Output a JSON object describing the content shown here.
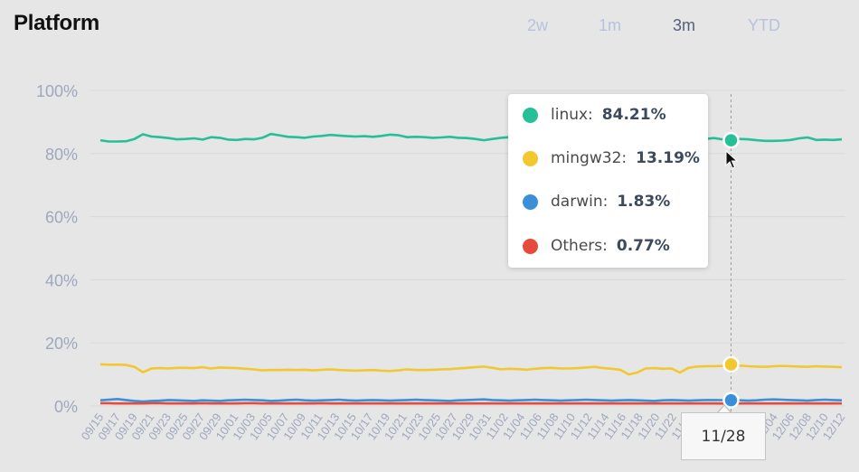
{
  "title": "Platform",
  "range_tabs": [
    {
      "label": "2w",
      "active": false
    },
    {
      "label": "1m",
      "active": false
    },
    {
      "label": "3m",
      "active": true
    },
    {
      "label": "YTD",
      "active": false
    }
  ],
  "tooltip": {
    "rows": [
      {
        "name": "linux",
        "value": "84.21%",
        "color": "#26bf97"
      },
      {
        "name": "mingw32",
        "value": "13.19%",
        "color": "#f2c72f"
      },
      {
        "name": "darwin",
        "value": "1.83%",
        "color": "#3a8fd9"
      },
      {
        "name": "Others",
        "value": "0.77%",
        "color": "#e54a3c"
      }
    ]
  },
  "hover_label": "11/28",
  "colors": {
    "linux": "#26bf97",
    "mingw32": "#f2c72f",
    "darwin": "#3a8fd9",
    "others": "#e54a3c",
    "axis_text": "#9ea8bd",
    "grid": "#d9d9d9"
  },
  "chart_data": {
    "type": "line",
    "title": "Platform",
    "xlabel": "",
    "ylabel": "",
    "ylim": [
      0,
      100
    ],
    "yticks": [
      "0%",
      "20%",
      "40%",
      "60%",
      "80%",
      "100%"
    ],
    "xtick_labels": [
      "09/15",
      "09/17",
      "09/19",
      "09/21",
      "09/23",
      "09/25",
      "09/27",
      "09/29",
      "10/01",
      "10/03",
      "10/05",
      "10/07",
      "10/09",
      "10/11",
      "10/13",
      "10/15",
      "10/17",
      "10/19",
      "10/21",
      "10/23",
      "10/25",
      "10/27",
      "10/29",
      "10/31",
      "11/02",
      "11/04",
      "11/06",
      "11/08",
      "11/10",
      "11/12",
      "11/14",
      "11/16",
      "11/18",
      "11/20",
      "11/22",
      "11/24",
      "11/26",
      "11/28",
      "11/30",
      "12/02",
      "12/04",
      "12/06",
      "12/08",
      "12/10",
      "12/12"
    ],
    "hover_index": 74,
    "series": [
      {
        "name": "linux",
        "color": "#26bf97",
        "values": [
          84.2,
          83.8,
          83.8,
          83.9,
          84.6,
          86.1,
          85.4,
          85.2,
          84.9,
          84.5,
          84.6,
          84.8,
          84.4,
          85.2,
          85.0,
          84.4,
          84.3,
          84.6,
          84.5,
          85.0,
          86.2,
          85.8,
          85.3,
          85.2,
          85.0,
          85.4,
          85.6,
          85.9,
          85.7,
          85.5,
          85.4,
          85.5,
          85.3,
          85.6,
          86.0,
          85.8,
          85.2,
          85.3,
          85.2,
          85.0,
          85.1,
          85.3,
          85.0,
          84.9,
          84.6,
          84.2,
          84.6,
          85.0,
          85.2,
          85.1,
          85.4,
          85.0,
          84.8,
          84.9,
          85.3,
          85.6,
          85.4,
          85.1,
          84.9,
          85.2,
          85.5,
          85.9,
          85.4,
          84.8,
          84.6,
          84.9,
          85.1,
          85.0,
          84.7,
          84.5,
          84.3,
          84.6,
          84.9,
          84.5,
          84.21,
          84.6,
          84.5,
          84.2,
          84.0,
          84.0,
          84.1,
          84.3,
          84.8,
          85.1,
          84.3,
          84.4,
          84.3,
          84.5
        ]
      },
      {
        "name": "mingw32",
        "color": "#f2c72f",
        "values": [
          13.2,
          13.1,
          13.1,
          13.0,
          12.4,
          10.7,
          11.9,
          12.0,
          11.9,
          12.1,
          12.1,
          12.0,
          12.3,
          11.9,
          12.2,
          12.1,
          12.0,
          11.8,
          11.6,
          11.3,
          11.4,
          11.4,
          11.5,
          11.4,
          11.5,
          11.3,
          11.5,
          11.6,
          11.4,
          11.3,
          11.2,
          11.3,
          11.4,
          11.2,
          11.1,
          11.3,
          11.6,
          11.4,
          11.4,
          11.5,
          11.6,
          11.7,
          11.9,
          12.1,
          12.3,
          12.5,
          12.1,
          11.6,
          11.8,
          11.7,
          11.5,
          11.8,
          12.0,
          12.1,
          11.9,
          11.9,
          12.0,
          12.2,
          12.4,
          12.0,
          11.8,
          11.5,
          10.0,
          10.6,
          11.9,
          12.0,
          11.8,
          11.9,
          10.6,
          12.1,
          12.5,
          12.6,
          12.6,
          12.7,
          13.19,
          12.8,
          12.6,
          12.5,
          12.4,
          12.6,
          12.7,
          12.6,
          12.5,
          12.4,
          12.6,
          12.5,
          12.4,
          12.3
        ]
      },
      {
        "name": "darwin",
        "color": "#3a8fd9",
        "values": [
          1.8,
          2.0,
          2.2,
          1.9,
          1.6,
          1.4,
          1.6,
          1.7,
          1.9,
          1.8,
          1.7,
          1.6,
          1.8,
          1.7,
          1.6,
          1.8,
          1.9,
          2.0,
          1.9,
          1.8,
          1.6,
          1.7,
          1.9,
          2.0,
          1.8,
          1.7,
          1.8,
          1.9,
          2.0,
          1.8,
          1.7,
          1.8,
          1.9,
          1.8,
          1.7,
          1.8,
          1.9,
          2.0,
          1.9,
          1.8,
          1.7,
          1.6,
          1.8,
          1.9,
          2.0,
          2.1,
          1.9,
          1.8,
          1.7,
          1.8,
          1.9,
          2.0,
          1.9,
          1.8,
          1.7,
          1.8,
          1.9,
          2.0,
          1.9,
          1.8,
          1.7,
          1.8,
          1.9,
          1.8,
          1.7,
          1.6,
          1.8,
          1.9,
          1.8,
          1.7,
          1.8,
          1.9,
          1.9,
          1.85,
          1.83,
          1.8,
          1.7,
          1.8,
          2.0,
          2.1,
          2.0,
          1.9,
          1.8,
          1.7,
          1.9,
          2.0,
          1.9,
          1.8
        ]
      },
      {
        "name": "Others",
        "color": "#e54a3c",
        "values": [
          0.9,
          0.9,
          0.8,
          0.8,
          0.8,
          0.8,
          0.9,
          0.9,
          0.8,
          0.8,
          0.8,
          0.8,
          0.9,
          0.8,
          0.8,
          0.8,
          0.8,
          0.9,
          0.9,
          0.8,
          0.8,
          0.8,
          0.8,
          0.8,
          0.8,
          0.8,
          0.9,
          0.8,
          0.8,
          0.8,
          0.8,
          0.8,
          0.8,
          0.8,
          0.8,
          0.8,
          0.8,
          0.8,
          0.8,
          0.8,
          0.8,
          0.8,
          0.8,
          0.8,
          0.8,
          0.8,
          0.8,
          0.8,
          0.8,
          0.8,
          0.8,
          0.8,
          0.8,
          0.8,
          0.8,
          0.8,
          0.8,
          0.8,
          0.8,
          0.8,
          0.8,
          0.8,
          0.8,
          0.8,
          0.8,
          0.8,
          0.8,
          0.8,
          0.8,
          0.8,
          0.8,
          0.8,
          0.8,
          0.78,
          0.77,
          0.8,
          0.8,
          0.8,
          0.8,
          0.8,
          0.8,
          0.8,
          0.8,
          0.8,
          0.8,
          0.8,
          0.8,
          0.8
        ]
      }
    ]
  }
}
